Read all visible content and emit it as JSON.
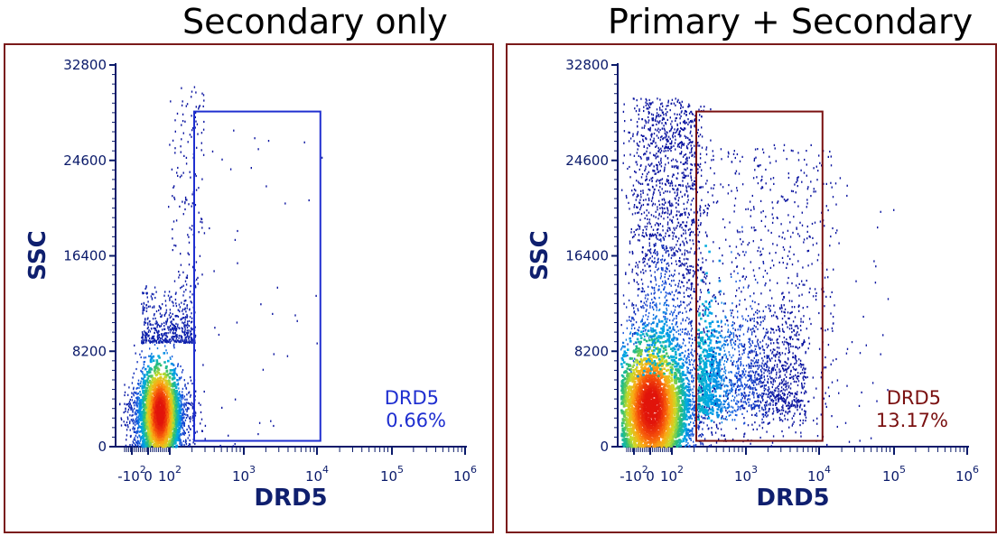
{
  "panels": [
    {
      "title": "Secondary only"
    },
    {
      "title": "Primary + Secondary"
    }
  ],
  "colors": {
    "frame_border": "#7a1a1a",
    "axis": "#0a1a6a",
    "gate_left": "#1f2fd0",
    "gate_right": "#7a1010"
  },
  "chart_data": [
    {
      "type": "scatter",
      "subtype": "flow-cytometry density dot plot",
      "title": "Secondary only",
      "xlabel": "DRD5",
      "ylabel": "SSC",
      "x_scale": "biexponential",
      "x_ticks": [
        "-10^2",
        "0",
        "10^2",
        "10^3",
        "10^4",
        "10^5",
        "10^6"
      ],
      "y_ticks": [
        0,
        8200,
        16400,
        24600,
        32800
      ],
      "ylim": [
        0,
        32800
      ],
      "gate": {
        "name": "DRD5",
        "percent": "0.66%",
        "x_range": [
          "~150",
          "~1.1x10^4"
        ],
        "y_range": [
          500,
          28800
        ]
      },
      "population": {
        "x_center": "~0",
        "y_center": 3000,
        "y_top": 14000
      },
      "colors": {
        "gate": "#1f2fd0"
      }
    },
    {
      "type": "scatter",
      "subtype": "flow-cytometry density dot plot",
      "title": "Primary + Secondary",
      "xlabel": "DRD5",
      "ylabel": "SSC",
      "x_scale": "biexponential",
      "x_ticks": [
        "-10^2",
        "0",
        "10^2",
        "10^3",
        "10^4",
        "10^5",
        "10^6"
      ],
      "y_ticks": [
        0,
        8200,
        16400,
        24600,
        32800
      ],
      "ylim": [
        0,
        32800
      ],
      "gate": {
        "name": "DRD5",
        "percent": "13.17%",
        "x_range": [
          "~150",
          "~1.1x10^4"
        ],
        "y_range": [
          500,
          28800
        ]
      },
      "population": {
        "x_center": "~0",
        "y_center": 3500,
        "y_top": 32800
      },
      "colors": {
        "gate": "#7a1010"
      }
    }
  ]
}
